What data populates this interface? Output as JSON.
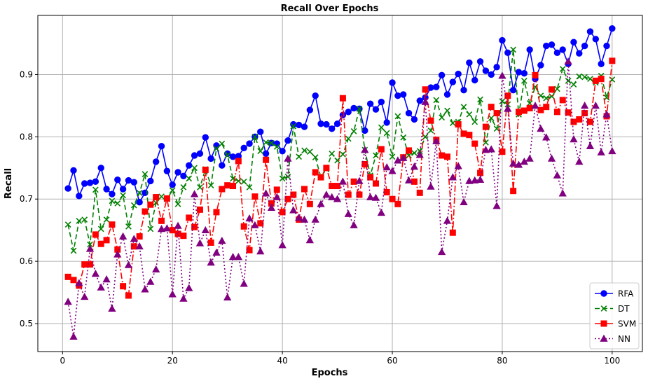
{
  "chart_data": {
    "type": "line",
    "title": "Recall Over Epochs",
    "xlabel": "Epochs",
    "ylabel": "Recall",
    "xlim": [
      -4.5,
      105.5
    ],
    "ylim": [
      0.455,
      0.995
    ],
    "xticks": [
      0,
      20,
      40,
      60,
      80,
      100
    ],
    "yticks": [
      0.5,
      0.6,
      0.7,
      0.8,
      0.9
    ],
    "grid": true,
    "legend_position": "lower-right",
    "x": [
      1,
      2,
      3,
      4,
      5,
      6,
      7,
      8,
      9,
      10,
      11,
      12,
      13,
      14,
      15,
      16,
      17,
      18,
      19,
      20,
      21,
      22,
      23,
      24,
      25,
      26,
      27,
      28,
      29,
      30,
      31,
      32,
      33,
      34,
      35,
      36,
      37,
      38,
      39,
      40,
      41,
      42,
      43,
      44,
      45,
      46,
      47,
      48,
      49,
      50,
      51,
      52,
      53,
      54,
      55,
      56,
      57,
      58,
      59,
      60,
      61,
      62,
      63,
      64,
      65,
      66,
      67,
      68,
      69,
      70,
      71,
      72,
      73,
      74,
      75,
      76,
      77,
      78,
      79,
      80,
      81,
      82,
      83,
      84,
      85,
      86,
      87,
      88,
      89,
      90,
      91,
      92,
      93,
      94,
      95,
      96,
      97,
      98,
      99,
      100
    ],
    "series": [
      {
        "name": "RFA",
        "color": "#0000ff",
        "linestyle": "solid",
        "marker": "circle",
        "values": [
          0.717,
          0.746,
          0.705,
          0.725,
          0.726,
          0.728,
          0.75,
          0.716,
          0.708,
          0.731,
          0.716,
          0.73,
          0.727,
          0.695,
          0.71,
          0.729,
          0.76,
          0.785,
          0.745,
          0.723,
          0.743,
          0.737,
          0.754,
          0.77,
          0.773,
          0.799,
          0.765,
          0.786,
          0.754,
          0.773,
          0.768,
          0.769,
          0.782,
          0.789,
          0.8,
          0.808,
          0.773,
          0.79,
          0.789,
          0.777,
          0.794,
          0.82,
          0.819,
          0.816,
          0.843,
          0.866,
          0.821,
          0.82,
          0.813,
          0.821,
          0.835,
          0.84,
          0.846,
          0.845,
          0.81,
          0.853,
          0.844,
          0.856,
          0.823,
          0.887,
          0.866,
          0.868,
          0.838,
          0.828,
          0.858,
          0.863,
          0.879,
          0.88,
          0.899,
          0.868,
          0.888,
          0.901,
          0.875,
          0.919,
          0.891,
          0.921,
          0.906,
          0.9,
          0.912,
          0.955,
          0.935,
          0.875,
          0.904,
          0.902,
          0.94,
          0.893,
          0.915,
          0.946,
          0.948,
          0.935,
          0.94,
          0.917,
          0.952,
          0.934,
          0.946,
          0.969,
          0.957,
          0.917,
          0.946,
          0.974
        ]
      },
      {
        "name": "DT",
        "color": "#008000",
        "linestyle": "dashed",
        "marker": "x",
        "values": [
          0.659,
          0.617,
          0.665,
          0.667,
          0.627,
          0.715,
          0.652,
          0.667,
          0.697,
          0.693,
          0.706,
          0.656,
          0.69,
          0.71,
          0.74,
          0.652,
          0.694,
          0.704,
          0.7,
          0.714,
          0.692,
          0.719,
          0.733,
          0.75,
          0.719,
          0.748,
          0.722,
          0.781,
          0.789,
          0.77,
          0.733,
          0.729,
          0.728,
          0.719,
          0.8,
          0.777,
          0.791,
          0.79,
          0.784,
          0.733,
          0.736,
          0.817,
          0.768,
          0.778,
          0.776,
          0.767,
          0.735,
          0.748,
          0.773,
          0.762,
          0.772,
          0.797,
          0.809,
          0.845,
          0.779,
          0.738,
          0.77,
          0.815,
          0.806,
          0.768,
          0.833,
          0.799,
          0.77,
          0.774,
          0.777,
          0.8,
          0.81,
          0.859,
          0.831,
          0.842,
          0.822,
          0.824,
          0.848,
          0.836,
          0.824,
          0.86,
          0.791,
          0.83,
          0.813,
          0.857,
          0.852,
          0.94,
          0.836,
          0.89,
          0.854,
          0.88,
          0.866,
          0.862,
          0.865,
          0.877,
          0.909,
          0.89,
          0.884,
          0.897,
          0.896,
          0.893,
          0.887,
          0.898,
          0.863,
          0.892
        ]
      },
      {
        "name": "SVM",
        "color": "#ff0000",
        "linestyle": "dashdot",
        "marker": "square",
        "values": [
          0.575,
          0.57,
          0.561,
          0.595,
          0.595,
          0.643,
          0.628,
          0.634,
          0.659,
          0.619,
          0.56,
          0.545,
          0.624,
          0.64,
          0.68,
          0.691,
          0.703,
          0.665,
          0.701,
          0.65,
          0.644,
          0.641,
          0.67,
          0.655,
          0.683,
          0.747,
          0.63,
          0.679,
          0.716,
          0.722,
          0.721,
          0.761,
          0.656,
          0.618,
          0.704,
          0.661,
          0.763,
          0.693,
          0.715,
          0.679,
          0.7,
          0.707,
          0.667,
          0.716,
          0.692,
          0.743,
          0.735,
          0.75,
          0.721,
          0.721,
          0.862,
          0.707,
          0.728,
          0.707,
          0.756,
          0.735,
          0.725,
          0.78,
          0.711,
          0.7,
          0.692,
          0.767,
          0.778,
          0.728,
          0.71,
          0.876,
          0.826,
          0.795,
          0.77,
          0.768,
          0.646,
          0.82,
          0.805,
          0.803,
          0.789,
          0.742,
          0.816,
          0.848,
          0.838,
          0.776,
          0.866,
          0.713,
          0.84,
          0.842,
          0.846,
          0.899,
          0.843,
          0.848,
          0.876,
          0.84,
          0.859,
          0.839,
          0.824,
          0.828,
          0.838,
          0.824,
          0.89,
          0.893,
          0.833,
          0.922
        ]
      },
      {
        "name": "NN",
        "color": "#800080",
        "linestyle": "dotted",
        "marker": "triangle-up",
        "values": [
          0.535,
          0.479,
          0.565,
          0.543,
          0.62,
          0.58,
          0.558,
          0.571,
          0.524,
          0.611,
          0.64,
          0.594,
          0.636,
          0.624,
          0.555,
          0.567,
          0.587,
          0.652,
          0.653,
          0.547,
          0.657,
          0.54,
          0.557,
          0.708,
          0.629,
          0.65,
          0.598,
          0.614,
          0.633,
          0.542,
          0.607,
          0.607,
          0.564,
          0.669,
          0.658,
          0.616,
          0.709,
          0.686,
          0.703,
          0.626,
          0.765,
          0.682,
          0.67,
          0.667,
          0.634,
          0.667,
          0.692,
          0.707,
          0.703,
          0.7,
          0.728,
          0.676,
          0.658,
          0.729,
          0.779,
          0.703,
          0.702,
          0.678,
          0.751,
          0.745,
          0.762,
          0.766,
          0.73,
          0.752,
          0.771,
          0.856,
          0.72,
          0.793,
          0.615,
          0.665,
          0.735,
          0.753,
          0.695,
          0.729,
          0.73,
          0.731,
          0.779,
          0.78,
          0.689,
          0.898,
          0.845,
          0.757,
          0.755,
          0.76,
          0.765,
          0.85,
          0.813,
          0.799,
          0.765,
          0.738,
          0.709,
          0.921,
          0.796,
          0.76,
          0.85,
          0.785,
          0.85,
          0.775,
          0.836,
          0.777
        ]
      }
    ]
  }
}
